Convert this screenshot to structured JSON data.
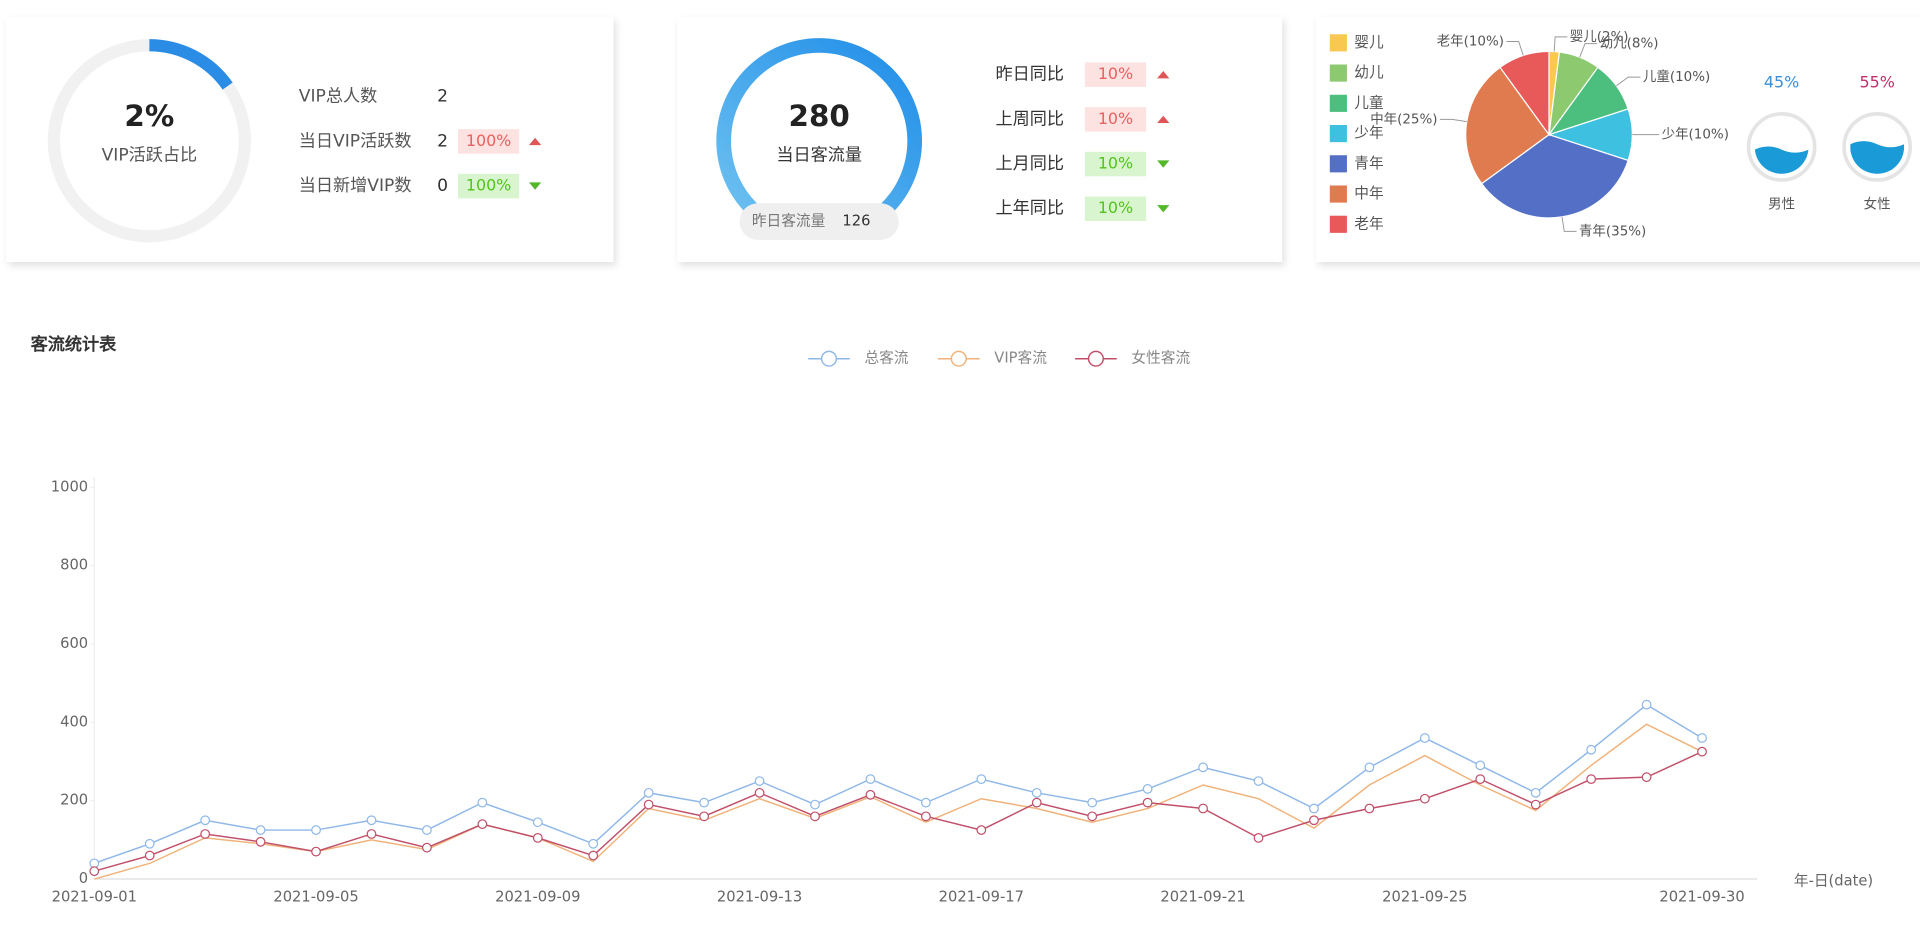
{
  "vip_card": {
    "percent": "2%",
    "label": "VIP活跃占比",
    "rows": [
      {
        "label": "VIP总人数",
        "value": 2
      },
      {
        "label": "当日VIP活跃数",
        "value": 2,
        "change": "100%",
        "trend": "up"
      },
      {
        "label": "当日新增VIP数",
        "value": 0,
        "change": "100%",
        "trend": "down"
      }
    ]
  },
  "flow_card": {
    "value": 280,
    "label": "当日客流量",
    "yesterday_label": "昨日客流量",
    "yesterday_value": 126,
    "rows": [
      {
        "label": "昨日同比",
        "change": "10%",
        "trend": "up"
      },
      {
        "label": "上周同比",
        "change": "10%",
        "trend": "up"
      },
      {
        "label": "上月同比",
        "change": "10%",
        "trend": "down"
      },
      {
        "label": "上年同比",
        "change": "10%",
        "trend": "down"
      }
    ]
  },
  "chart_data": [
    {
      "type": "pie",
      "categories": [
        "婴儿",
        "幼儿",
        "儿童",
        "少年",
        "青年",
        "中年",
        "老年"
      ],
      "values": [
        2,
        8,
        10,
        10,
        35,
        25,
        10
      ],
      "value_labels": [
        "婴儿(2%)",
        "幼儿(8%)",
        "儿童(10%)",
        "少年(10%)",
        "青年(35%)",
        "中年(25%)",
        "老年(10%)"
      ],
      "colors": [
        "#f9c851",
        "#8dc96f",
        "#4cbf7f",
        "#3ec1e0",
        "#5470c6",
        "#e07a4f",
        "#e85a5a"
      ]
    },
    {
      "type": "liquid",
      "categories": [
        "男性",
        "女性"
      ],
      "values": [
        45,
        55
      ],
      "value_labels": [
        "45%",
        "55%"
      ],
      "label_colors": [
        "#3a8fd6",
        "#c0306a"
      ],
      "color": "#1a9ad6"
    },
    {
      "type": "line",
      "title": "客流统计表",
      "x_axis_label": "年-日(date)",
      "categories": [
        "2021-09-01",
        null,
        null,
        null,
        "2021-09-05",
        null,
        null,
        null,
        "2021-09-09",
        null,
        null,
        null,
        "2021-09-13",
        null,
        null,
        null,
        "2021-09-17",
        null,
        null,
        null,
        "2021-09-21",
        null,
        null,
        null,
        "2021-09-25",
        null,
        null,
        null,
        null,
        "2021-09-30"
      ],
      "series": [
        {
          "name": "总客流",
          "color": "#8fb8e8",
          "markers": true,
          "values": [
            40,
            90,
            150,
            125,
            125,
            150,
            125,
            195,
            145,
            90,
            220,
            195,
            250,
            190,
            255,
            195,
            255,
            220,
            195,
            230,
            285,
            250,
            180,
            285,
            360,
            290,
            220,
            330,
            445,
            360
          ]
        },
        {
          "name": "VIP客流",
          "color": "#f0b27a",
          "markers": false,
          "values": [
            0,
            40,
            105,
            90,
            70,
            100,
            75,
            140,
            105,
            45,
            180,
            150,
            205,
            155,
            210,
            145,
            205,
            180,
            145,
            180,
            240,
            205,
            130,
            240,
            315,
            240,
            175,
            290,
            395,
            325
          ]
        },
        {
          "name": "女性客流",
          "color": "#c0506a",
          "markers": true,
          "values": [
            20,
            60,
            115,
            95,
            70,
            115,
            80,
            140,
            105,
            60,
            190,
            160,
            220,
            160,
            215,
            160,
            125,
            195,
            160,
            195,
            180,
            105,
            150,
            180,
            205,
            255,
            190,
            255,
            260,
            325
          ]
        }
      ],
      "ylim": [
        0,
        1000
      ],
      "yticks": [
        0,
        200,
        400,
        600,
        800,
        1000
      ],
      "grid": false
    }
  ]
}
